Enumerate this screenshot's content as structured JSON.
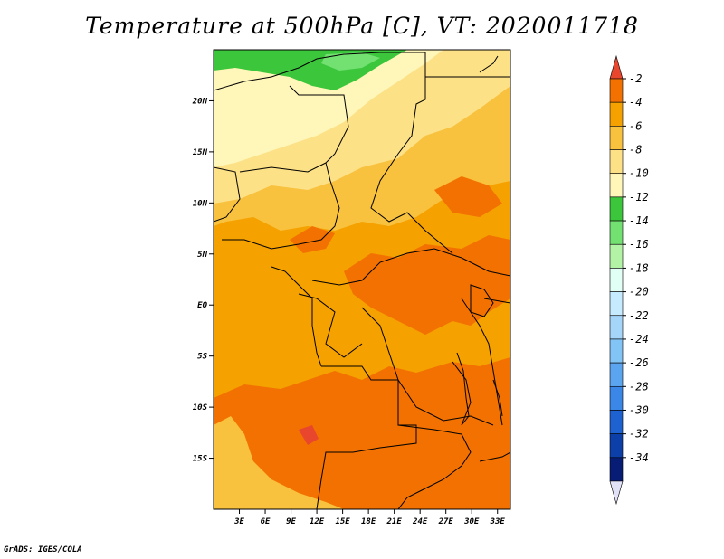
{
  "title": "Temperature at 500hPa [C], VT: 2020011718",
  "credit": "GrADS: IGES/COLA",
  "map": {
    "lon_range": [
      0,
      34.5
    ],
    "lat_range": [
      -20,
      25
    ],
    "lon_labels": [
      {
        "lon": 3,
        "label": "3E"
      },
      {
        "lon": 6,
        "label": "6E"
      },
      {
        "lon": 9,
        "label": "9E"
      },
      {
        "lon": 12,
        "label": "12E"
      },
      {
        "lon": 15,
        "label": "15E"
      },
      {
        "lon": 18,
        "label": "18E"
      },
      {
        "lon": 21,
        "label": "21E"
      },
      {
        "lon": 24,
        "label": "24E"
      },
      {
        "lon": 27,
        "label": "27E"
      },
      {
        "lon": 30,
        "label": "30E"
      },
      {
        "lon": 33,
        "label": "33E"
      }
    ],
    "lat_labels": [
      {
        "lat": 20,
        "label": "20N"
      },
      {
        "lat": 15,
        "label": "15N"
      },
      {
        "lat": 10,
        "label": "10N"
      },
      {
        "lat": 5,
        "label": "5N"
      },
      {
        "lat": 0,
        "label": "EQ"
      },
      {
        "lat": -5,
        "label": "5S"
      },
      {
        "lat": -10,
        "label": "10S"
      },
      {
        "lat": -15,
        "label": "15S"
      }
    ]
  },
  "colorbar": {
    "labels": [
      "-2",
      "-4",
      "-6",
      "-8",
      "-10",
      "-12",
      "-14",
      "-16",
      "-18",
      "-20",
      "-22",
      "-24",
      "-26",
      "-28",
      "-30",
      "-32",
      "-34"
    ],
    "colors": [
      "#e8462d",
      "#f27100",
      "#f5a100",
      "#f8c13e",
      "#fde186",
      "#fff6b9",
      "#3cc63c",
      "#73e072",
      "#b3f3a6",
      "#e2fff5",
      "#c6ebff",
      "#a5d6fa",
      "#82c4f6",
      "#5ba5f0",
      "#3b87e8",
      "#1e62d2",
      "#0d3fa9",
      "#071d75",
      "#e1e1f8"
    ]
  },
  "legend_colors": {
    "over": "#e8462d",
    "under": "#e1e1f8"
  }
}
